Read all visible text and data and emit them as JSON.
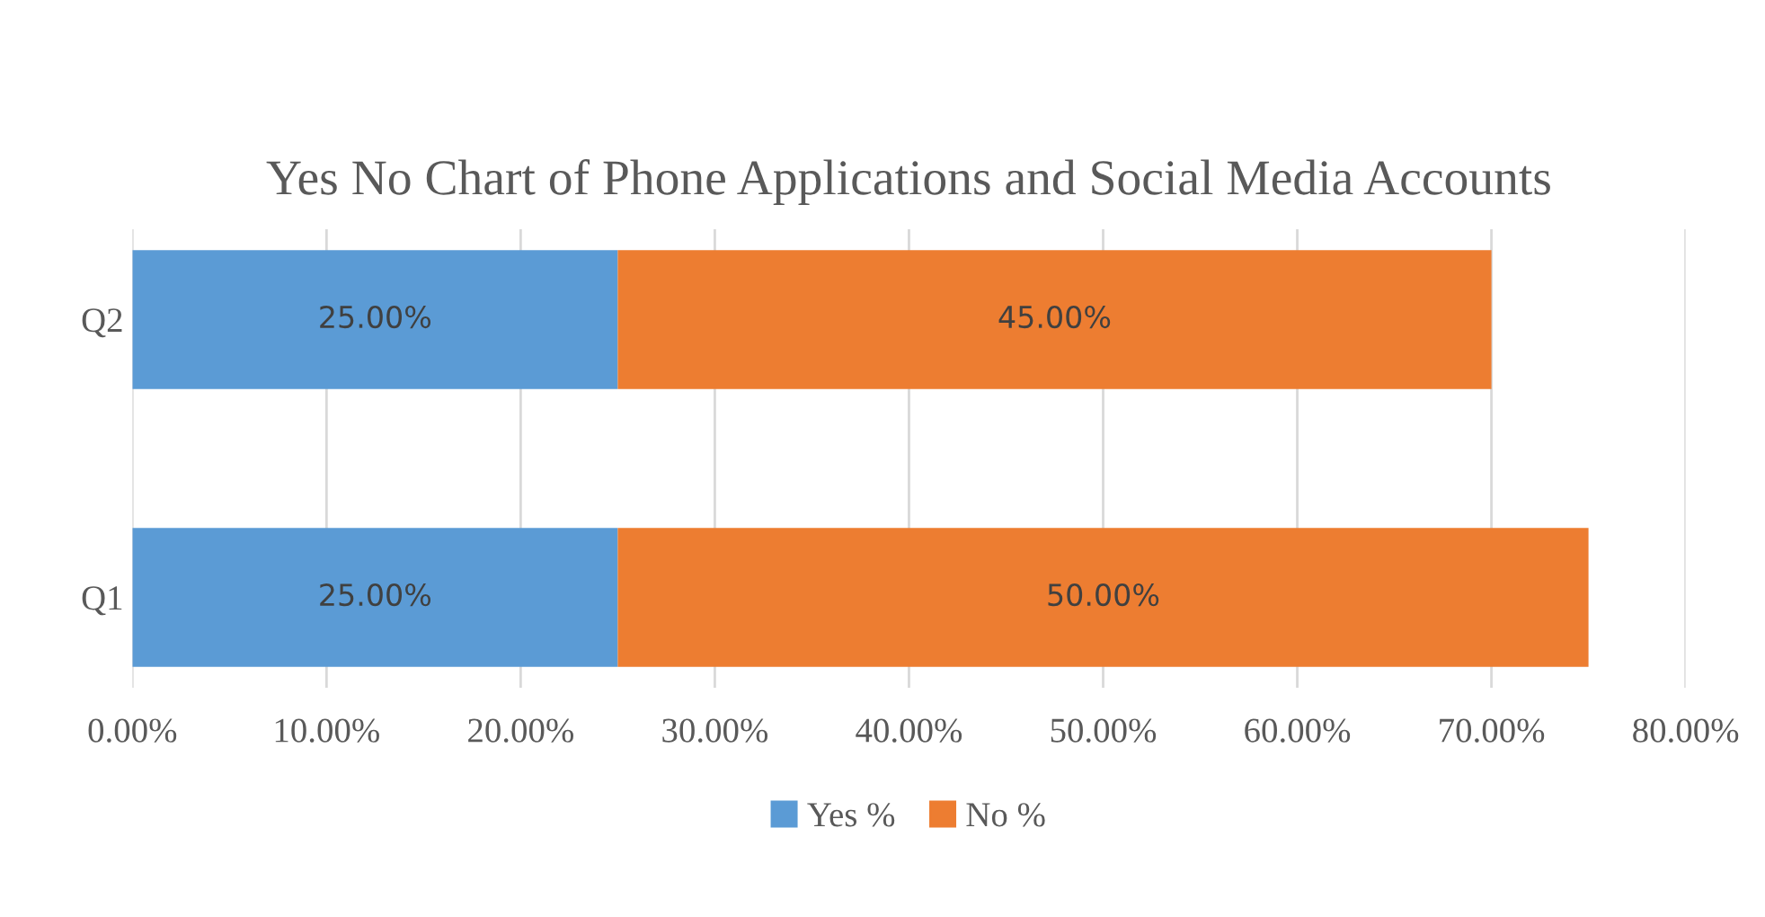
{
  "chart_data": {
    "type": "bar",
    "title": "Yes No Chart of Phone Applications and Social Media Accounts",
    "orientation": "horizontal",
    "stacked": true,
    "categories": [
      "Q2",
      "Q1"
    ],
    "series": [
      {
        "name": "Yes %",
        "color": "#5b9bd5",
        "values": [
          25,
          25
        ],
        "value_labels": [
          "25.00%",
          "25.00%"
        ]
      },
      {
        "name": "No %",
        "color": "#ed7d31",
        "values": [
          45,
          50
        ],
        "value_labels": [
          "45.00%",
          "50.00%"
        ]
      }
    ],
    "xlim": [
      0,
      80
    ],
    "xticks": [
      {
        "value": 0,
        "label": "0.00%"
      },
      {
        "value": 10,
        "label": "10.00%"
      },
      {
        "value": 20,
        "label": "20.00%"
      },
      {
        "value": 30,
        "label": "30.00%"
      },
      {
        "value": 40,
        "label": "40.00%"
      },
      {
        "value": 50,
        "label": "50.00%"
      },
      {
        "value": 60,
        "label": "60.00%"
      },
      {
        "value": 70,
        "label": "70.00%"
      },
      {
        "value": 80,
        "label": "80.00%"
      }
    ],
    "grid": "x",
    "legend": "bottom"
  }
}
